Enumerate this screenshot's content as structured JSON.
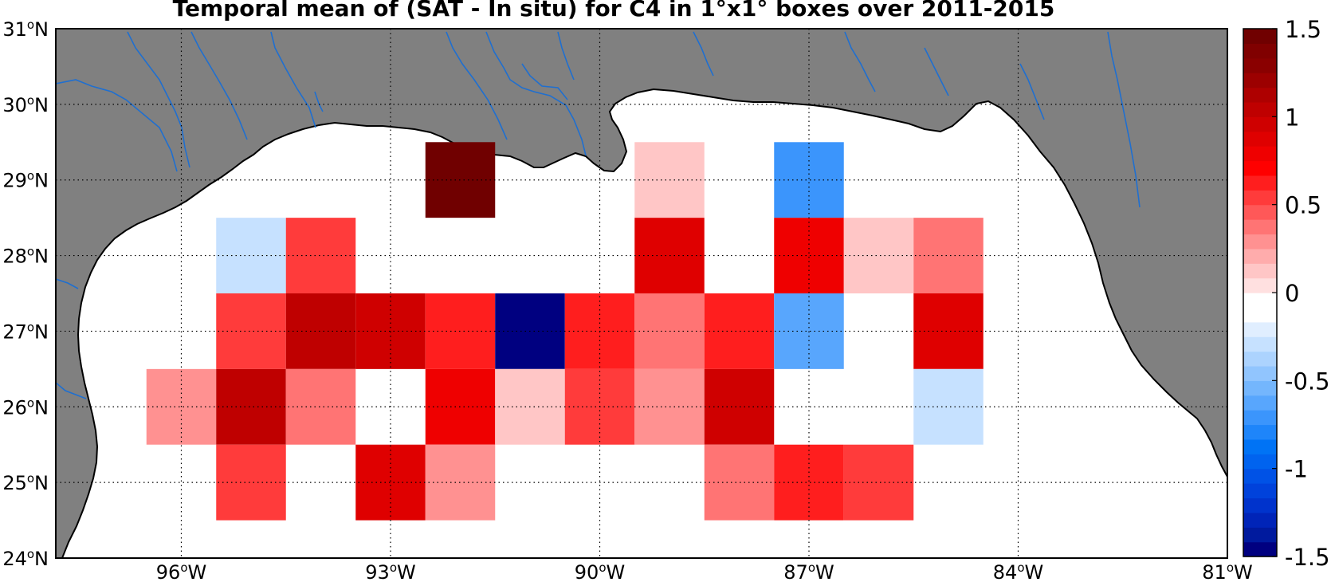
{
  "title": "Temporal mean of (SAT - In situ) for C4 in 1°x1° boxes over 2011-2015",
  "map": {
    "lon_range": [
      -97.8,
      -81.0
    ],
    "lat_range": [
      24.0,
      31.0
    ],
    "land_color": "#808080",
    "river_color": "#1f6fd0",
    "grid": "dotted",
    "lat_labels": [
      {
        "value": 31,
        "num": "31",
        "deg": "o",
        "hem": "N"
      },
      {
        "value": 30,
        "num": "30",
        "deg": "o",
        "hem": "N"
      },
      {
        "value": 29,
        "num": "29",
        "deg": "o",
        "hem": "N"
      },
      {
        "value": 28,
        "num": "28",
        "deg": "o",
        "hem": "N"
      },
      {
        "value": 27,
        "num": "27",
        "deg": "o",
        "hem": "N"
      },
      {
        "value": 26,
        "num": "26",
        "deg": "o",
        "hem": "N"
      },
      {
        "value": 25,
        "num": "25",
        "deg": "o",
        "hem": "N"
      },
      {
        "value": 24,
        "num": "24",
        "deg": "o",
        "hem": "N"
      }
    ],
    "lon_labels": [
      {
        "value": -96,
        "num": "96",
        "deg": "o",
        "hem": "W"
      },
      {
        "value": -93,
        "num": "93",
        "deg": "o",
        "hem": "W"
      },
      {
        "value": -90,
        "num": "90",
        "deg": "o",
        "hem": "W"
      },
      {
        "value": -87,
        "num": "87",
        "deg": "o",
        "hem": "W"
      },
      {
        "value": -84,
        "num": "84",
        "deg": "o",
        "hem": "W"
      },
      {
        "value": -81,
        "num": "81",
        "deg": "o",
        "hem": "W"
      }
    ]
  },
  "cells": [
    {
      "lon": -92,
      "lat": 29,
      "value": 1.5
    },
    {
      "lon": -89,
      "lat": 29,
      "value": 0.12
    },
    {
      "lon": -87,
      "lat": 29,
      "value": -0.75
    },
    {
      "lon": -95,
      "lat": 28,
      "value": -0.3
    },
    {
      "lon": -94,
      "lat": 28,
      "value": 0.55
    },
    {
      "lon": -89,
      "lat": 28,
      "value": 0.85
    },
    {
      "lon": -87,
      "lat": 28,
      "value": 0.75
    },
    {
      "lon": -86,
      "lat": 28,
      "value": 0.12
    },
    {
      "lon": -85,
      "lat": 28,
      "value": 0.4
    },
    {
      "lon": -95,
      "lat": 27,
      "value": 0.55
    },
    {
      "lon": -94,
      "lat": 27,
      "value": 1.05
    },
    {
      "lon": -93,
      "lat": 27,
      "value": 0.95
    },
    {
      "lon": -92,
      "lat": 27,
      "value": 0.65
    },
    {
      "lon": -91,
      "lat": 27,
      "value": -1.5
    },
    {
      "lon": -90,
      "lat": 27,
      "value": 0.65
    },
    {
      "lon": -89,
      "lat": 27,
      "value": 0.4
    },
    {
      "lon": -88,
      "lat": 27,
      "value": 0.6
    },
    {
      "lon": -87,
      "lat": 27,
      "value": -0.6
    },
    {
      "lon": -85,
      "lat": 27,
      "value": 0.85
    },
    {
      "lon": -96,
      "lat": 26,
      "value": 0.25
    },
    {
      "lon": -95,
      "lat": 26,
      "value": 1.05
    },
    {
      "lon": -94,
      "lat": 26,
      "value": 0.4
    },
    {
      "lon": -92,
      "lat": 26,
      "value": 0.75
    },
    {
      "lon": -91,
      "lat": 26,
      "value": 0.12
    },
    {
      "lon": -90,
      "lat": 26,
      "value": 0.55
    },
    {
      "lon": -89,
      "lat": 26,
      "value": 0.25
    },
    {
      "lon": -88,
      "lat": 26,
      "value": 0.95
    },
    {
      "lon": -85,
      "lat": 26,
      "value": -0.3
    },
    {
      "lon": -95,
      "lat": 25,
      "value": 0.55
    },
    {
      "lon": -93,
      "lat": 25,
      "value": 0.85
    },
    {
      "lon": -92,
      "lat": 25,
      "value": 0.25
    },
    {
      "lon": -88,
      "lat": 25,
      "value": 0.4
    },
    {
      "lon": -87,
      "lat": 25,
      "value": 0.65
    },
    {
      "lon": -86,
      "lat": 25,
      "value": 0.55
    },
    {
      "lon": -84,
      "lat": 25,
      "value": -0.12
    }
  ],
  "colorbar": {
    "min": -1.5,
    "max": 1.5,
    "ticks": [
      {
        "value": 1.5,
        "label": "1.5"
      },
      {
        "value": 1.0,
        "label": "1"
      },
      {
        "value": 0.5,
        "label": "0.5"
      },
      {
        "value": 0.0,
        "label": "0"
      },
      {
        "value": -0.5,
        "label": "-0.5"
      },
      {
        "value": -1.0,
        "label": "-1"
      },
      {
        "value": -1.5,
        "label": "-1.5"
      }
    ],
    "colors": [
      "#000080",
      "#001a9e",
      "#0024b8",
      "#0033cc",
      "#0042db",
      "#0052e6",
      "#0063ef",
      "#0073f5",
      "#1e85fa",
      "#3b95fc",
      "#58a6fd",
      "#74b6fd",
      "#91c5fe",
      "#acd3fe",
      "#c6e1ff",
      "#e0eeff",
      "#ffffff",
      "#ffffff",
      "#ffe0e0",
      "#ffc6c6",
      "#ffacac",
      "#ff9191",
      "#ff7474",
      "#ff5858",
      "#ff3b3b",
      "#ff1e1e",
      "#ff0000",
      "#ef0000",
      "#df0000",
      "#cf0000",
      "#bf0000",
      "#ae0000",
      "#9c0000",
      "#8a0000",
      "#800000",
      "#700000"
    ]
  }
}
